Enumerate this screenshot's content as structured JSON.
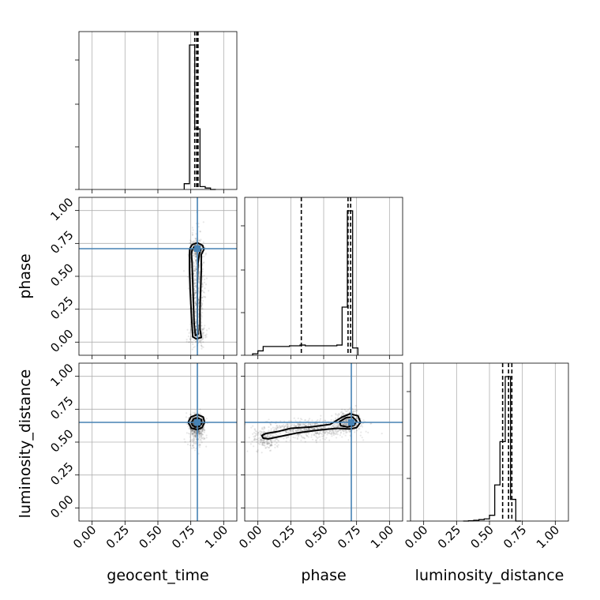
{
  "chart_data": {
    "type": "corner",
    "parameters": [
      "geocent_time",
      "phase",
      "luminosity_distance"
    ],
    "axis_range": [
      -0.1,
      1.1
    ],
    "tick_values": [
      0.0,
      0.25,
      0.5,
      0.75,
      1.0
    ],
    "tick_labels": [
      "0.00",
      "0.25",
      "0.50",
      "0.75",
      "1.00"
    ],
    "grid": true,
    "colors": {
      "truth": "#4682b4",
      "hist": "#000000",
      "samples": "#000000",
      "grid": "#b0b0b0"
    },
    "truths": {
      "geocent_time": 0.8,
      "phase": 0.71,
      "luminosity_distance": 0.65
    },
    "histograms": {
      "geocent_time": {
        "bin_edges": [
          0.7,
          0.74,
          0.78,
          0.82,
          0.86,
          0.9,
          0.94
        ],
        "counts": [
          0.04,
          1.0,
          0.42,
          0.02,
          0.01,
          0.0
        ],
        "quantiles": [
          0.78,
          0.795,
          0.805
        ]
      },
      "phase": {
        "bin_edges": [
          -0.04,
          0.0,
          0.04,
          0.08,
          0.12,
          0.16,
          0.2,
          0.24,
          0.28,
          0.32,
          0.36,
          0.4,
          0.44,
          0.48,
          0.52,
          0.56,
          0.6,
          0.64,
          0.68,
          0.72,
          0.76
        ],
        "counts": [
          0.01,
          0.03,
          0.06,
          0.06,
          0.06,
          0.06,
          0.06,
          0.065,
          0.065,
          0.07,
          0.065,
          0.065,
          0.065,
          0.065,
          0.065,
          0.065,
          0.07,
          0.33,
          0.99,
          0.05
        ],
        "quantiles": [
          0.33,
          0.685,
          0.705
        ]
      },
      "luminosity_distance": {
        "bin_edges": [
          0.3,
          0.34,
          0.38,
          0.42,
          0.46,
          0.5,
          0.54,
          0.58,
          0.62,
          0.66,
          0.7,
          0.74
        ],
        "counts": [
          0.0,
          0.002,
          0.005,
          0.01,
          0.015,
          0.04,
          0.25,
          0.55,
          1.0,
          0.15,
          0.0
        ],
        "quantiles": [
          0.6,
          0.645,
          0.67
        ]
      }
    },
    "scatter_panels": [
      {
        "x": "geocent_time",
        "y": "phase",
        "contour_outer": [
          [
            0.742,
            0.71
          ],
          [
            0.76,
            0.74
          ],
          [
            0.8,
            0.755
          ],
          [
            0.84,
            0.735
          ],
          [
            0.85,
            0.705
          ],
          [
            0.83,
            0.665
          ],
          [
            0.83,
            0.55
          ],
          [
            0.825,
            0.4
          ],
          [
            0.82,
            0.25
          ],
          [
            0.82,
            0.1
          ],
          [
            0.83,
            0.035
          ],
          [
            0.79,
            0.025
          ],
          [
            0.765,
            0.04
          ],
          [
            0.755,
            0.2
          ],
          [
            0.745,
            0.4
          ],
          [
            0.74,
            0.55
          ],
          [
            0.74,
            0.66
          ]
        ],
        "contour_inner": [
          [
            0.76,
            0.7
          ],
          [
            0.78,
            0.73
          ],
          [
            0.815,
            0.725
          ],
          [
            0.825,
            0.7
          ],
          [
            0.815,
            0.67
          ],
          [
            0.805,
            0.6
          ],
          [
            0.8,
            0.45
          ],
          [
            0.8,
            0.3
          ],
          [
            0.8,
            0.15
          ],
          [
            0.805,
            0.06
          ],
          [
            0.785,
            0.05
          ],
          [
            0.775,
            0.15
          ],
          [
            0.77,
            0.3
          ],
          [
            0.765,
            0.45
          ],
          [
            0.76,
            0.6
          ],
          [
            0.755,
            0.67
          ]
        ],
        "cloud": [
          {
            "cx": 0.795,
            "cy": 0.7,
            "sx": 0.025,
            "sy": 0.04,
            "n": 220
          },
          {
            "cx": 0.795,
            "cy": 0.4,
            "sx": 0.028,
            "sy": 0.2,
            "n": 450
          },
          {
            "cx": 0.8,
            "cy": 0.06,
            "sx": 0.03,
            "sy": 0.05,
            "n": 160
          }
        ]
      },
      {
        "x": "geocent_time",
        "y": "luminosity_distance",
        "contour_outer": [
          [
            0.73,
            0.65
          ],
          [
            0.75,
            0.69
          ],
          [
            0.8,
            0.71
          ],
          [
            0.845,
            0.69
          ],
          [
            0.855,
            0.65
          ],
          [
            0.835,
            0.61
          ],
          [
            0.8,
            0.595
          ],
          [
            0.755,
            0.605
          ]
        ],
        "contour_inner": [
          [
            0.755,
            0.65
          ],
          [
            0.77,
            0.675
          ],
          [
            0.8,
            0.685
          ],
          [
            0.83,
            0.67
          ],
          [
            0.835,
            0.645
          ],
          [
            0.815,
            0.62
          ],
          [
            0.785,
            0.615
          ],
          [
            0.762,
            0.628
          ]
        ],
        "cloud": [
          {
            "cx": 0.795,
            "cy": 0.64,
            "sx": 0.028,
            "sy": 0.035,
            "n": 500
          },
          {
            "cx": 0.79,
            "cy": 0.57,
            "sx": 0.03,
            "sy": 0.05,
            "n": 220
          }
        ]
      },
      {
        "x": "phase",
        "y": "luminosity_distance",
        "contour_outer": [
          [
            0.03,
            0.55
          ],
          [
            0.06,
            0.565
          ],
          [
            0.15,
            0.58
          ],
          [
            0.25,
            0.605
          ],
          [
            0.4,
            0.615
          ],
          [
            0.55,
            0.635
          ],
          [
            0.64,
            0.69
          ],
          [
            0.7,
            0.715
          ],
          [
            0.76,
            0.7
          ],
          [
            0.78,
            0.65
          ],
          [
            0.75,
            0.61
          ],
          [
            0.7,
            0.6
          ],
          [
            0.6,
            0.605
          ],
          [
            0.45,
            0.59
          ],
          [
            0.3,
            0.57
          ],
          [
            0.18,
            0.545
          ],
          [
            0.08,
            0.525
          ],
          [
            0.04,
            0.53
          ]
        ],
        "contour_inner": [
          [
            0.62,
            0.655
          ],
          [
            0.67,
            0.685
          ],
          [
            0.72,
            0.69
          ],
          [
            0.75,
            0.66
          ],
          [
            0.73,
            0.625
          ],
          [
            0.68,
            0.615
          ],
          [
            0.63,
            0.625
          ]
        ],
        "cloud": [
          {
            "cx": 0.68,
            "cy": 0.66,
            "sx": 0.05,
            "sy": 0.035,
            "n": 350
          },
          {
            "cx": 0.4,
            "cy": 0.6,
            "sx": 0.18,
            "sy": 0.035,
            "n": 600
          },
          {
            "cx": 0.06,
            "cy": 0.52,
            "sx": 0.05,
            "sy": 0.04,
            "n": 180
          }
        ]
      }
    ]
  }
}
